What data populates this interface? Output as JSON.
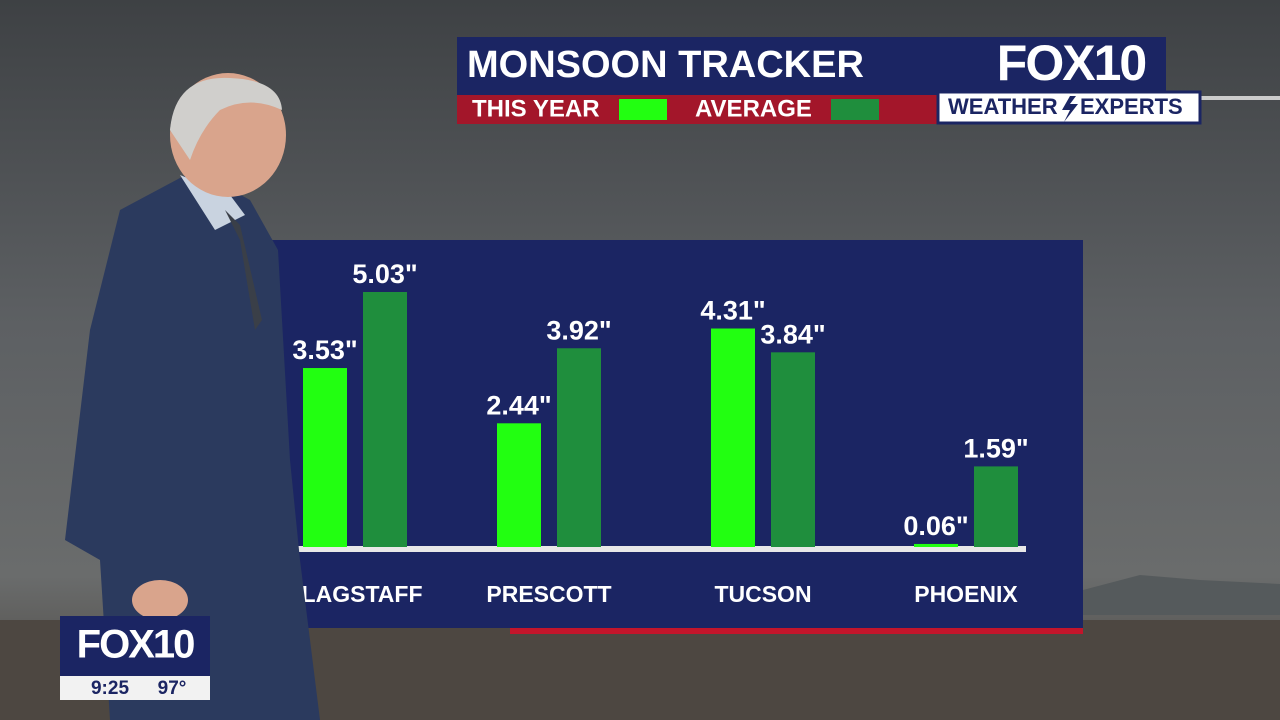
{
  "chart_data": {
    "type": "bar",
    "title": "MONSOON TRACKER",
    "categories": [
      "FLAGSTAFF",
      "PRESCOTT",
      "TUCSON",
      "PHOENIX"
    ],
    "series": [
      {
        "name": "THIS YEAR",
        "color": "#22ff11",
        "values": [
          3.53,
          2.44,
          4.31,
          0.06
        ],
        "value_labels": [
          "3.53\"",
          "2.44\"",
          "4.31\"",
          "0.06\""
        ]
      },
      {
        "name": "AVERAGE",
        "color": "#1f8e3d",
        "values": [
          5.03,
          3.92,
          3.84,
          1.59
        ],
        "value_labels": [
          "5.03\"",
          "3.92\"",
          "3.84\"",
          "1.59\""
        ]
      }
    ]
  },
  "branding": {
    "logo": "FOX10",
    "tagline_left": "WEATHER",
    "tagline_right": "EXPERTS"
  },
  "bug": {
    "logo": "FOX10",
    "time": "9:25",
    "temperature": "97°"
  }
}
